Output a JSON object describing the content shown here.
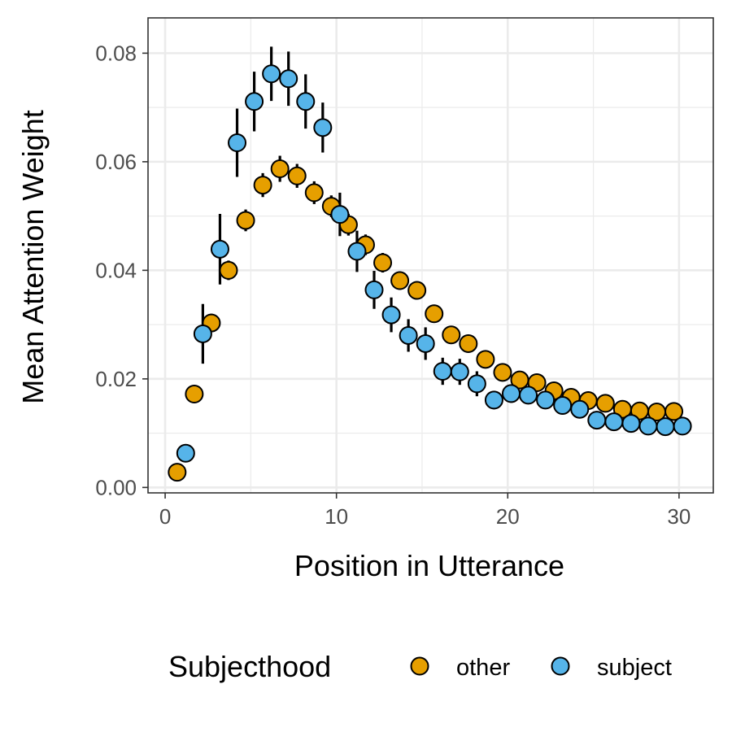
{
  "chart_data": {
    "type": "scatter",
    "xlabel": "Position in Utterance",
    "ylabel": "Mean Attention Weight",
    "xlim": [
      -1,
      32
    ],
    "ylim": [
      -0.001,
      0.0865
    ],
    "x_ticks": [
      0,
      10,
      20,
      30
    ],
    "y_ticks": [
      0.0,
      0.02,
      0.04,
      0.06,
      0.08
    ],
    "x_tick_labels": [
      "0",
      "10",
      "20",
      "30"
    ],
    "y_tick_labels": [
      "0.00",
      "0.02",
      "0.04",
      "0.06",
      "0.08"
    ],
    "grid": true,
    "legend": {
      "title": "Subjecthood",
      "position": "bottom",
      "entries": [
        "other",
        "subject"
      ]
    },
    "series": [
      {
        "name": "other",
        "color": "#E69F00",
        "x": [
          0.7,
          1.7,
          2.7,
          3.7,
          4.7,
          5.7,
          6.7,
          7.7,
          8.7,
          9.7,
          10.7,
          11.7,
          12.7,
          13.7,
          14.7,
          15.7,
          16.7,
          17.7,
          18.7,
          19.7,
          20.7,
          21.7,
          22.7,
          23.7,
          24.7,
          25.7,
          26.7,
          27.7,
          28.7,
          29.7
        ],
        "y": [
          0.0028,
          0.0172,
          0.0303,
          0.04,
          0.0492,
          0.0557,
          0.0587,
          0.0574,
          0.0543,
          0.0518,
          0.0484,
          0.0447,
          0.0414,
          0.0381,
          0.0363,
          0.032,
          0.0281,
          0.0265,
          0.0236,
          0.0212,
          0.0198,
          0.0193,
          0.0178,
          0.0166,
          0.016,
          0.0155,
          0.0144,
          0.0141,
          0.0139,
          0.014
        ],
        "err": [
          0.0008,
          0.0012,
          0.0017,
          0.0018,
          0.002,
          0.0022,
          0.0024,
          0.0022,
          0.0021,
          0.002,
          0.002,
          0.0019,
          0.0018,
          0.0017,
          0.0016,
          0.0014,
          0.0013,
          0.0012,
          0.0011,
          0.0011,
          0.001,
          0.001,
          0.0009,
          0.0009,
          0.0009,
          0.0009,
          0.0008,
          0.0008,
          0.0008,
          0.0008
        ]
      },
      {
        "name": "subject",
        "color": "#56B4E9",
        "x": [
          1.2,
          2.2,
          3.2,
          4.2,
          5.2,
          6.2,
          7.2,
          8.2,
          9.2,
          10.2,
          11.2,
          12.2,
          13.2,
          14.2,
          15.2,
          16.2,
          17.2,
          18.2,
          19.2,
          20.2,
          21.2,
          22.2,
          23.2,
          24.2,
          25.2,
          26.2,
          27.2,
          28.2,
          29.2,
          30.2
        ],
        "y": [
          0.0063,
          0.0283,
          0.0439,
          0.0635,
          0.0711,
          0.0762,
          0.0753,
          0.0711,
          0.0663,
          0.0503,
          0.0435,
          0.0364,
          0.0318,
          0.028,
          0.0265,
          0.0214,
          0.0213,
          0.0191,
          0.0161,
          0.0173,
          0.017,
          0.0161,
          0.0151,
          0.0144,
          0.0124,
          0.0121,
          0.0118,
          0.0113,
          0.0112,
          0.0113
        ],
        "err": [
          0.0012,
          0.0055,
          0.0065,
          0.0063,
          0.0055,
          0.005,
          0.005,
          0.005,
          0.0046,
          0.004,
          0.0038,
          0.0035,
          0.0032,
          0.003,
          0.003,
          0.0025,
          0.0024,
          0.0023,
          0.0017,
          0.0017,
          0.0016,
          0.0016,
          0.0014,
          0.0012,
          0.001,
          0.001,
          0.0008,
          0.0008,
          0.0007,
          0.0007
        ]
      }
    ]
  }
}
